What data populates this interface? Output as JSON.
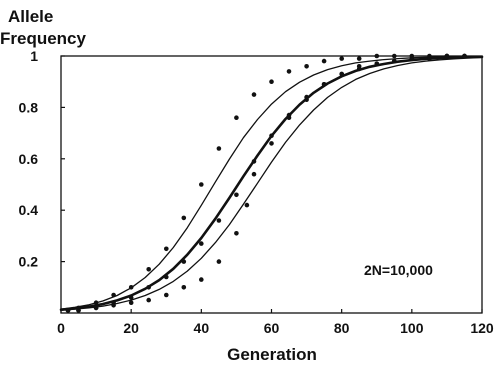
{
  "chart_data": {
    "type": "line",
    "ylabel_lines": [
      "Allele",
      "Frequency"
    ],
    "xlabel": "Generation",
    "annotation": "2N=10,000",
    "xlim": [
      0,
      120
    ],
    "ylim": [
      0,
      1
    ],
    "xticks": [
      0,
      20,
      40,
      60,
      80,
      100,
      120
    ],
    "yticks": [
      0.2,
      0.4,
      0.6,
      0.8,
      1
    ],
    "ytick_labels": [
      "0.2",
      "0.4",
      "0.6",
      "0.8",
      "1"
    ],
    "grid": false,
    "colors": {
      "curve": "#111111",
      "axis": "#111111"
    },
    "series": [
      {
        "x": [
          0,
          4,
          8,
          12,
          16,
          20,
          24,
          28,
          32,
          36,
          40,
          44,
          48,
          52,
          56,
          60,
          64,
          68,
          72,
          76,
          80,
          84,
          88,
          92,
          96,
          100,
          104,
          108,
          112,
          116,
          120
        ],
        "y": [
          0.015,
          0.022,
          0.032,
          0.047,
          0.068,
          0.098,
          0.138,
          0.19,
          0.255,
          0.332,
          0.419,
          0.51,
          0.599,
          0.682,
          0.753,
          0.813,
          0.861,
          0.898,
          0.926,
          0.947,
          0.962,
          0.973,
          0.98,
          0.986,
          0.99,
          0.993,
          0.995,
          0.996,
          0.997,
          0.998,
          0.999
        ],
        "points": [
          [
            2,
            0.01
          ],
          [
            5,
            0.02
          ],
          [
            10,
            0.04
          ],
          [
            15,
            0.07
          ],
          [
            20,
            0.1
          ],
          [
            25,
            0.17
          ],
          [
            30,
            0.25
          ],
          [
            35,
            0.37
          ],
          [
            40,
            0.5
          ],
          [
            45,
            0.64
          ],
          [
            50,
            0.76
          ],
          [
            55,
            0.85
          ],
          [
            60,
            0.9
          ],
          [
            65,
            0.94
          ],
          [
            70,
            0.96
          ],
          [
            75,
            0.98
          ],
          [
            80,
            0.99
          ],
          [
            85,
            0.99
          ],
          [
            90,
            1
          ],
          [
            95,
            1
          ],
          [
            100,
            1
          ],
          [
            105,
            1
          ],
          [
            110,
            1
          ],
          [
            115,
            1
          ]
        ],
        "line_width": 1.3
      },
      {
        "x": [
          0,
          4,
          8,
          12,
          16,
          20,
          24,
          28,
          32,
          36,
          40,
          44,
          48,
          52,
          56,
          60,
          64,
          68,
          72,
          76,
          80,
          84,
          88,
          92,
          96,
          100,
          104,
          108,
          112,
          116,
          120
        ],
        "y": [
          0.013,
          0.018,
          0.025,
          0.035,
          0.049,
          0.068,
          0.094,
          0.128,
          0.172,
          0.227,
          0.292,
          0.367,
          0.448,
          0.532,
          0.613,
          0.689,
          0.755,
          0.811,
          0.857,
          0.893,
          0.921,
          0.942,
          0.958,
          0.969,
          0.978,
          0.984,
          0.989,
          0.992,
          0.994,
          0.996,
          0.997
        ],
        "points": [
          [
            2,
            0.01
          ],
          [
            5,
            0.01
          ],
          [
            10,
            0.02
          ],
          [
            15,
            0.04
          ],
          [
            20,
            0.06
          ],
          [
            25,
            0.1
          ],
          [
            30,
            0.14
          ],
          [
            35,
            0.2
          ],
          [
            40,
            0.27
          ],
          [
            45,
            0.36
          ],
          [
            50,
            0.46
          ],
          [
            55,
            0.59
          ],
          [
            60,
            0.69
          ],
          [
            65,
            0.77
          ],
          [
            70,
            0.83
          ],
          [
            75,
            0.89
          ],
          [
            80,
            0.93
          ],
          [
            85,
            0.96
          ],
          [
            90,
            0.97
          ],
          [
            95,
            0.98
          ],
          [
            100,
            0.99
          ],
          [
            105,
            0.99
          ],
          [
            110,
            1
          ],
          [
            115,
            1
          ]
        ],
        "line_width": 2.6
      },
      {
        "x": [
          0,
          4,
          8,
          12,
          16,
          20,
          24,
          28,
          32,
          36,
          40,
          44,
          48,
          52,
          56,
          60,
          64,
          68,
          72,
          76,
          80,
          84,
          88,
          92,
          96,
          100,
          104,
          108,
          112,
          116,
          120
        ],
        "y": [
          0.011,
          0.015,
          0.02,
          0.027,
          0.037,
          0.05,
          0.068,
          0.092,
          0.123,
          0.163,
          0.213,
          0.274,
          0.344,
          0.423,
          0.505,
          0.587,
          0.664,
          0.732,
          0.79,
          0.839,
          0.878,
          0.909,
          0.932,
          0.95,
          0.963,
          0.973,
          0.98,
          0.985,
          0.989,
          0.992,
          0.994
        ],
        "points": [
          [
            2,
            0.01
          ],
          [
            5,
            0.01
          ],
          [
            10,
            0.02
          ],
          [
            15,
            0.03
          ],
          [
            20,
            0.04
          ],
          [
            25,
            0.05
          ],
          [
            30,
            0.07
          ],
          [
            35,
            0.1
          ],
          [
            40,
            0.13
          ],
          [
            45,
            0.2
          ],
          [
            50,
            0.31
          ],
          [
            53,
            0.42
          ],
          [
            55,
            0.54
          ],
          [
            60,
            0.66
          ],
          [
            65,
            0.76
          ],
          [
            70,
            0.84
          ],
          [
            75,
            0.89
          ],
          [
            80,
            0.93
          ],
          [
            85,
            0.95
          ],
          [
            90,
            0.97
          ],
          [
            95,
            0.98
          ],
          [
            100,
            0.99
          ],
          [
            105,
            0.99
          ],
          [
            110,
            1
          ],
          [
            115,
            1
          ]
        ],
        "line_width": 1.3
      }
    ]
  }
}
